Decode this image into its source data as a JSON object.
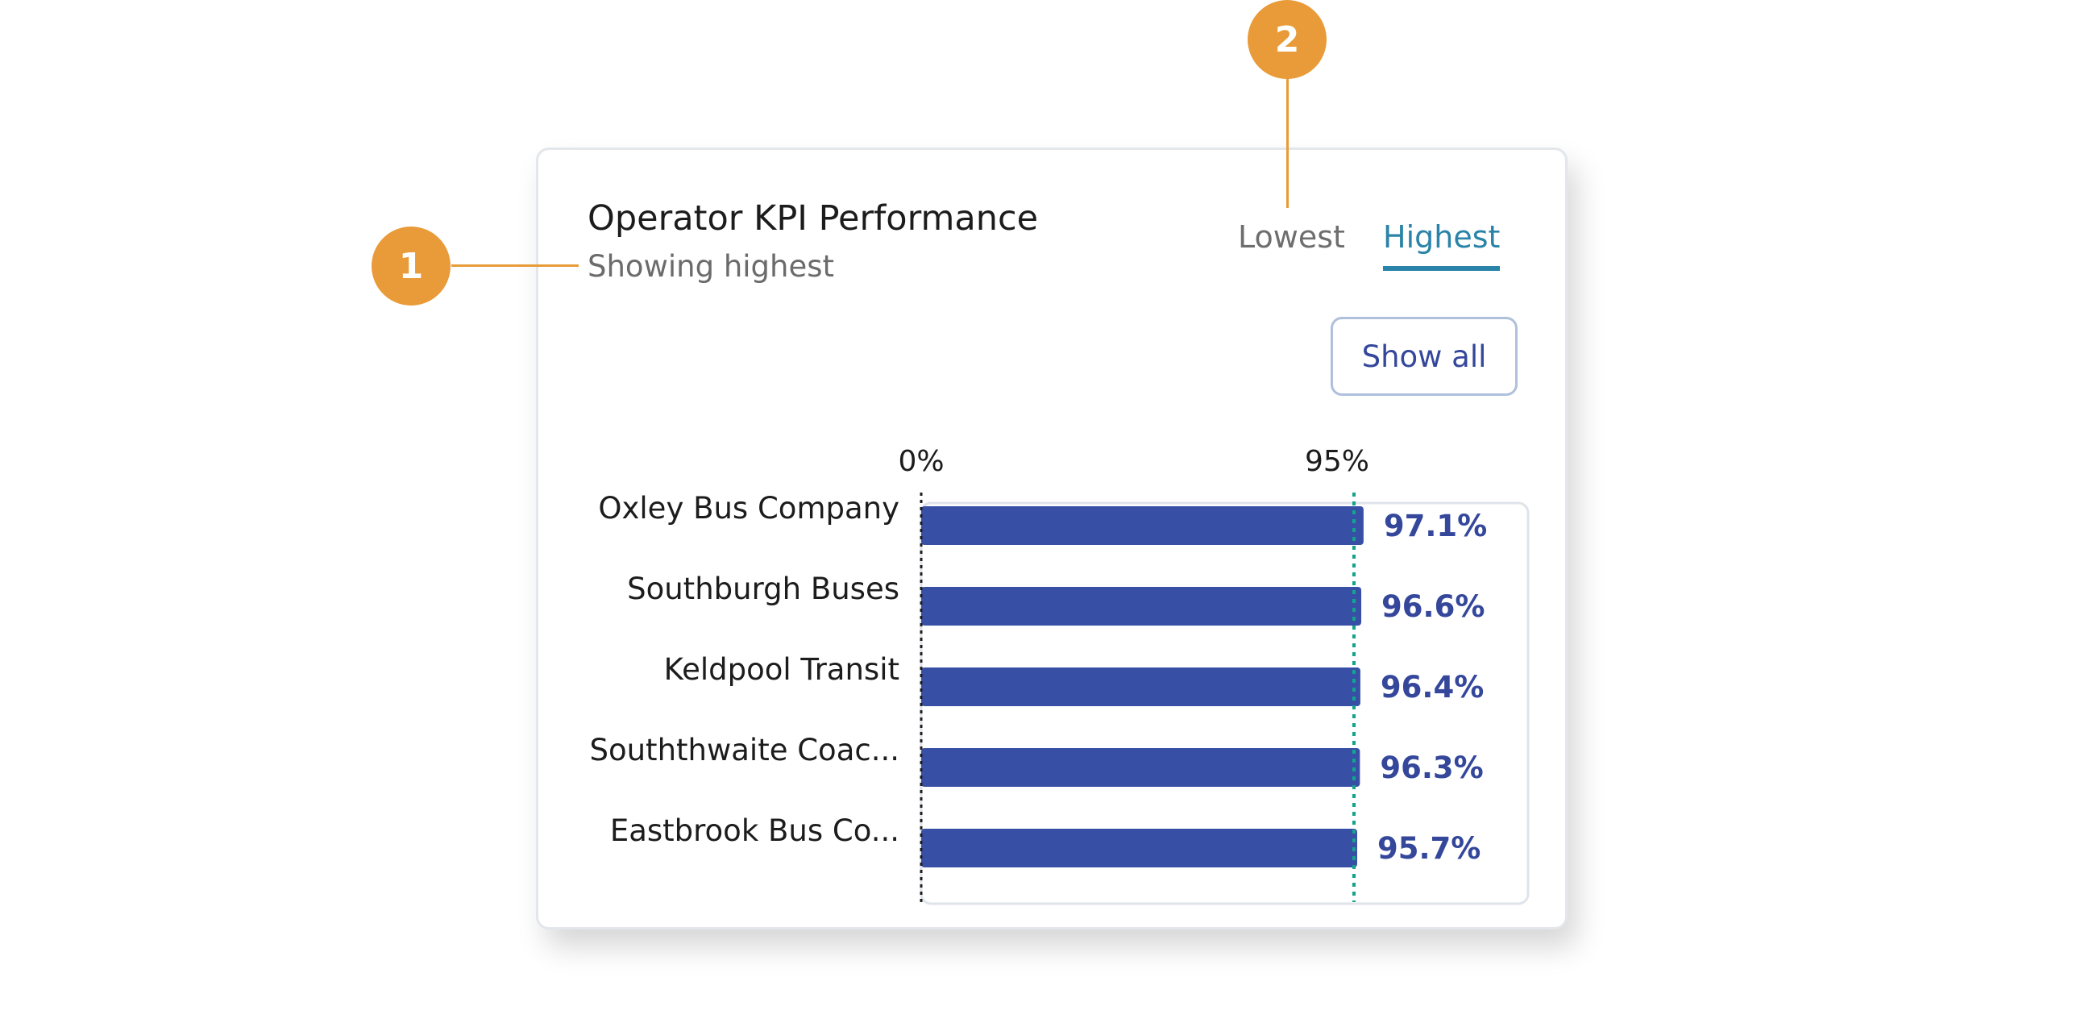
{
  "card": {
    "title": "Operator KPI Performance",
    "subtitle": "Showing highest",
    "tabs": [
      {
        "label": "Lowest",
        "active": false
      },
      {
        "label": "Highest",
        "active": true
      }
    ],
    "show_all_label": "Show all"
  },
  "chart_data": {
    "type": "bar",
    "orientation": "horizontal",
    "categories": [
      "Oxley Bus Company",
      "Southburgh Buses",
      "Keldpool Transit",
      "Souththwaite Coac...",
      "Eastbrook Bus Co..."
    ],
    "values": [
      97.1,
      96.6,
      96.4,
      96.3,
      95.7
    ],
    "value_labels": [
      "97.1%",
      "96.6%",
      "96.4%",
      "96.3%",
      "95.7%"
    ],
    "axis_labels": {
      "zero": "0%",
      "target": "95%"
    },
    "target_value": 95,
    "bar_color": "#3750a6",
    "target_line_color": "#14a38b"
  },
  "callouts": [
    {
      "number": "1",
      "target": "subtitle"
    },
    {
      "number": "2",
      "target": "tabs"
    }
  ],
  "colors": {
    "accent_tab": "#2a83a8",
    "callout": "#e89b38",
    "bar": "#3750a6"
  }
}
